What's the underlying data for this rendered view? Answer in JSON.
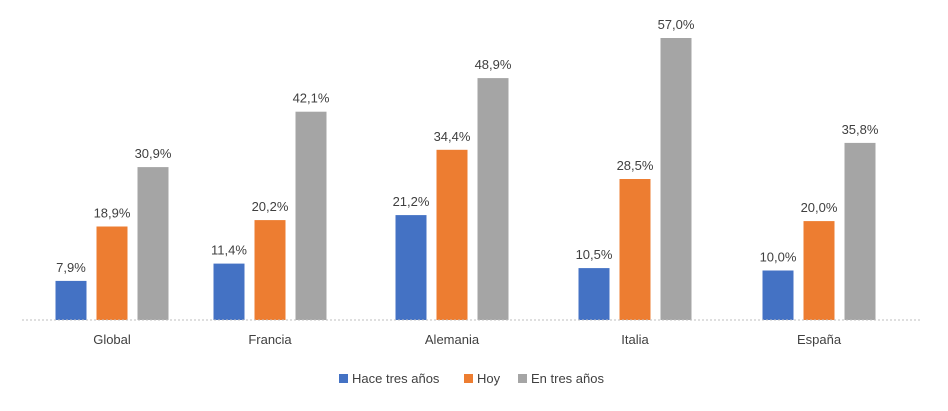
{
  "chart_data": {
    "type": "bar",
    "title": "",
    "xlabel": "",
    "ylabel": "",
    "categories": [
      "Global",
      "Francia",
      "Alemania",
      "Italia",
      "España"
    ],
    "series": [
      {
        "name": "Hace tres años",
        "color": "#4472C4",
        "values": [
          7.9,
          11.4,
          21.2,
          10.5,
          10.0
        ],
        "labels": [
          "7,9%",
          "11,4%",
          "21,2%",
          "10,5%",
          "10,0%"
        ]
      },
      {
        "name": "Hoy",
        "color": "#ED7D31",
        "values": [
          18.9,
          20.2,
          34.4,
          28.5,
          20.0
        ],
        "labels": [
          "18,9%",
          "20,2%",
          "34,4%",
          "28,5%",
          "20,0%"
        ]
      },
      {
        "name": "En tres años",
        "color": "#A5A5A5",
        "values": [
          30.9,
          42.1,
          48.9,
          57.0,
          35.8
        ],
        "labels": [
          "30,9%",
          "42,1%",
          "48,9%",
          "57,0%",
          "35,8%"
        ]
      }
    ],
    "ylim": [
      0,
      57.0
    ],
    "grid": false,
    "legend_position": "bottom",
    "axis_color": "#BFBFBF"
  }
}
